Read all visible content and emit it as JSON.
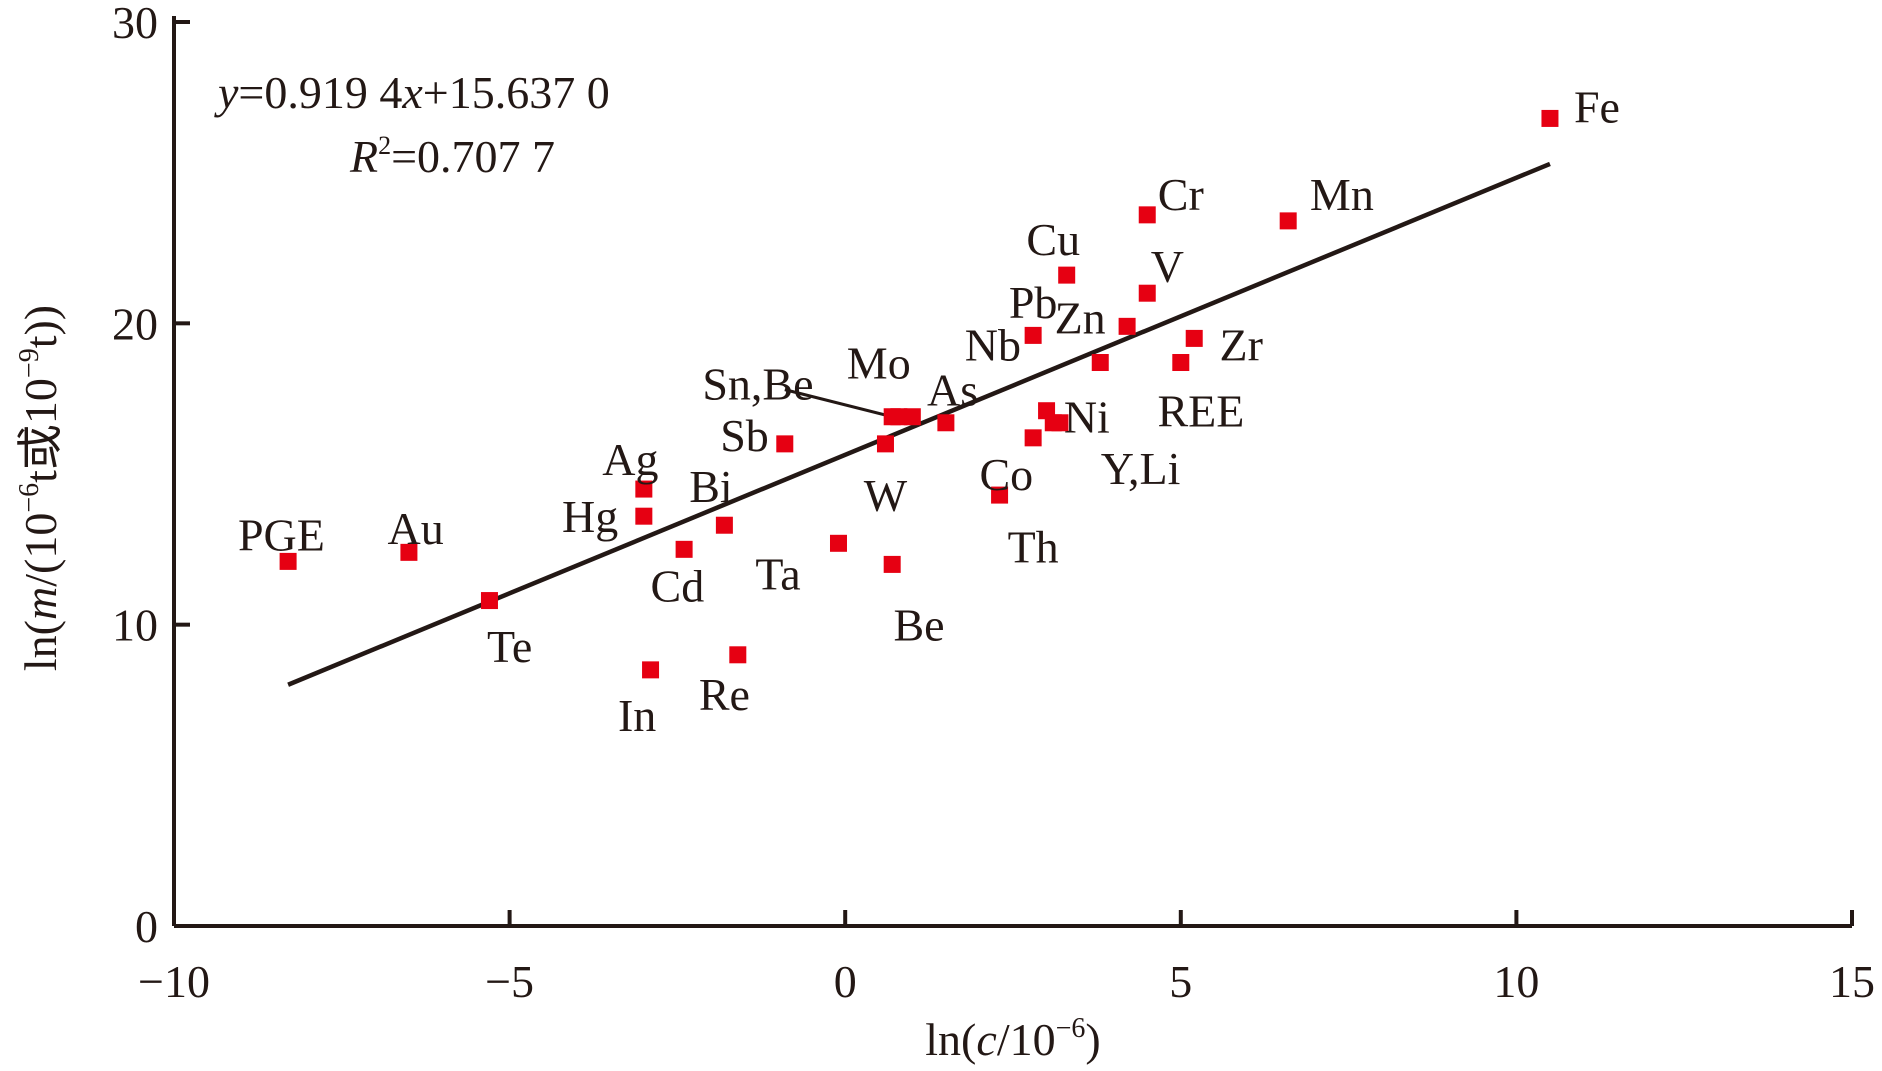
{
  "chart_data": {
    "type": "scatter",
    "xlabel_parts": {
      "pre": "ln(",
      "var": "c",
      "post": "/10",
      "exp": "−6",
      "close": ")"
    },
    "ylabel_parts": {
      "pre": "ln(",
      "var": "m",
      "mid": "/(10",
      "exp1": "−6",
      "mid2": "t或10",
      "exp2": "−9",
      "post": "t))"
    },
    "xlim": [
      -10,
      15
    ],
    "ylim": [
      0,
      30
    ],
    "x_ticks": [
      {
        "value": -10,
        "label": "−10"
      },
      {
        "value": -5,
        "label": "−5"
      },
      {
        "value": 0,
        "label": "0"
      },
      {
        "value": 5,
        "label": "5"
      },
      {
        "value": 10,
        "label": "10"
      },
      {
        "value": 15,
        "label": "15"
      }
    ],
    "y_ticks": [
      {
        "value": 0,
        "label": "0"
      },
      {
        "value": 10,
        "label": "10"
      },
      {
        "value": 20,
        "label": "20"
      },
      {
        "value": 30,
        "label": "30"
      }
    ],
    "points": [
      {
        "label": "PGE",
        "x": -8.3,
        "y": 12.1
      },
      {
        "label": "Au",
        "x": -6.5,
        "y": 12.4
      },
      {
        "label": "Te",
        "x": -5.3,
        "y": 10.8
      },
      {
        "label": "In",
        "x": -2.9,
        "y": 8.5
      },
      {
        "label": "Re",
        "x": -1.6,
        "y": 9.0
      },
      {
        "label": "Ag",
        "x": -3.0,
        "y": 14.5
      },
      {
        "label": "Hg",
        "x": -3.0,
        "y": 13.6
      },
      {
        "label": "Cd",
        "x": -2.4,
        "y": 12.5
      },
      {
        "label": "Bi",
        "x": -1.8,
        "y": 13.3
      },
      {
        "label": "Sb",
        "x": -0.9,
        "y": 16.0
      },
      {
        "label": "Ta",
        "x": -0.1,
        "y": 12.7
      },
      {
        "label": "W",
        "x": 0.6,
        "y": 16.0
      },
      {
        "label": "Be",
        "x": 0.7,
        "y": 12.0
      },
      {
        "label": "Sn",
        "x": 0.7,
        "y": 16.9
      },
      {
        "label": "Be",
        "x": 0.8,
        "y": 16.9
      },
      {
        "label": "Mo",
        "x": 1.0,
        "y": 16.9
      },
      {
        "label": "As",
        "x": 1.5,
        "y": 16.7
      },
      {
        "label": "Th",
        "x": 2.3,
        "y": 14.3
      },
      {
        "label": "Co",
        "x": 2.8,
        "y": 16.2
      },
      {
        "label": "Nb",
        "x": 2.8,
        "y": 19.6
      },
      {
        "label": "Ni",
        "x": 3.0,
        "y": 17.1
      },
      {
        "label": "Y",
        "x": 3.1,
        "y": 16.7
      },
      {
        "label": "Li",
        "x": 3.2,
        "y": 16.7
      },
      {
        "label": "Cu",
        "x": 3.3,
        "y": 21.6
      },
      {
        "label": "Pb",
        "x": 3.8,
        "y": 18.7
      },
      {
        "label": "Zn",
        "x": 4.2,
        "y": 19.9
      },
      {
        "label": "Cr",
        "x": 4.5,
        "y": 23.6
      },
      {
        "label": "V",
        "x": 4.5,
        "y": 21.0
      },
      {
        "label": "REE",
        "x": 5.0,
        "y": 18.7
      },
      {
        "label": "Zr",
        "x": 5.2,
        "y": 19.5
      },
      {
        "label": "Mn",
        "x": 6.6,
        "y": 23.4
      },
      {
        "label": "Fe",
        "x": 10.5,
        "y": 26.8
      }
    ],
    "point_labels": [
      {
        "text": "PGE",
        "x": -8.4,
        "y": 13.0
      },
      {
        "text": "Au",
        "x": -6.4,
        "y": 13.2
      },
      {
        "text": "Te",
        "x": -5.0,
        "y": 9.3
      },
      {
        "text": "In",
        "x": -3.1,
        "y": 7.0
      },
      {
        "text": "Re",
        "x": -1.8,
        "y": 7.7
      },
      {
        "text": "Ag",
        "x": -3.2,
        "y": 15.5
      },
      {
        "text": "Hg",
        "x": -3.8,
        "y": 13.6
      },
      {
        "text": "Cd",
        "x": -2.5,
        "y": 11.3
      },
      {
        "text": "Bi",
        "x": -2.0,
        "y": 14.6
      },
      {
        "text": "Sb",
        "x": -1.5,
        "y": 16.3
      },
      {
        "text": "Ta",
        "x": -1.0,
        "y": 11.7
      },
      {
        "text": "W",
        "x": 0.6,
        "y": 14.3
      },
      {
        "text": "Be",
        "x": 1.1,
        "y": 10.0
      },
      {
        "text": "Sn,Be",
        "x": -1.3,
        "y": 18.0
      },
      {
        "text": "Mo",
        "x": 0.5,
        "y": 18.7
      },
      {
        "text": "As",
        "x": 1.6,
        "y": 17.8
      },
      {
        "text": "Th",
        "x": 2.8,
        "y": 12.6
      },
      {
        "text": "Co",
        "x": 2.4,
        "y": 15.0
      },
      {
        "text": "Nb",
        "x": 2.2,
        "y": 19.3
      },
      {
        "text": "Ni",
        "x": 3.6,
        "y": 16.9
      },
      {
        "text": "Y,Li",
        "x": 4.4,
        "y": 15.2
      },
      {
        "text": "Cu",
        "x": 3.1,
        "y": 22.8
      },
      {
        "text": "Pb",
        "x": 2.8,
        "y": 20.7
      },
      {
        "text": "Zn",
        "x": 3.5,
        "y": 20.2
      },
      {
        "text": "Cr",
        "x": 5.0,
        "y": 24.3
      },
      {
        "text": "V",
        "x": 4.8,
        "y": 21.9
      },
      {
        "text": "REE",
        "x": 5.3,
        "y": 17.1
      },
      {
        "text": "Zr",
        "x": 5.9,
        "y": 19.3
      },
      {
        "text": "Mn",
        "x": 7.4,
        "y": 24.3
      },
      {
        "text": "Fe",
        "x": 11.2,
        "y": 27.2
      }
    ],
    "leader_line": {
      "x1": -0.9,
      "y1": 17.8,
      "x2": 0.7,
      "y2": 16.9
    },
    "fit": {
      "slope": 0.9194,
      "intercept": 15.637,
      "x_start": -8.3,
      "x_end": 10.5
    },
    "equation": {
      "y": "y",
      "eq": "=0.919 4",
      "x": "x",
      "rest": "+15.637 0"
    },
    "r2": {
      "r": "R",
      "sup": "2",
      "rest": "=0.707 7"
    },
    "colors": {
      "marker": "#e60012",
      "ink": "#231815",
      "background": "#ffffff"
    },
    "grid": false,
    "legend": "none"
  }
}
